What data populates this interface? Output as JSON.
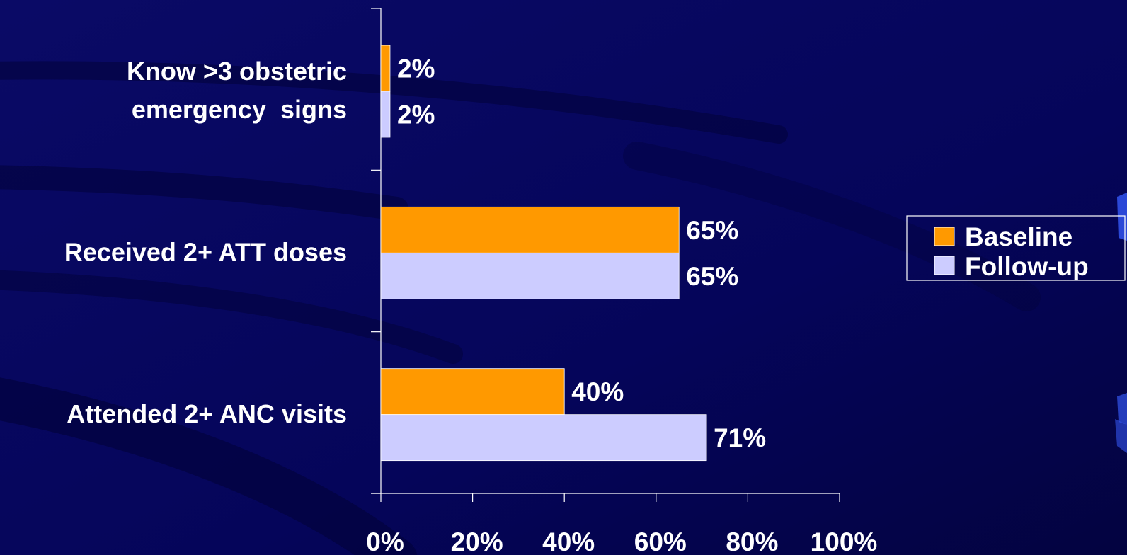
{
  "chart_data": {
    "type": "bar",
    "orientation": "horizontal",
    "categories": [
      [
        "Know >3 obstetric",
        "emergency  signs"
      ],
      [
        "Received 2+ ATT doses"
      ],
      [
        "Attended 2+ ANC visits"
      ]
    ],
    "series": [
      {
        "name": "Baseline",
        "values": [
          2,
          65,
          40
        ],
        "color": "#ff9900"
      },
      {
        "name": "Follow-up",
        "values": [
          2,
          65,
          71
        ],
        "color": "#ccccff"
      }
    ],
    "value_labels": [
      [
        "2%",
        "65%",
        "40%"
      ],
      [
        "2%",
        "65%",
        "71%"
      ]
    ],
    "xlim": [
      0,
      100
    ],
    "x_ticks": [
      {
        "value": 0,
        "label": "0%"
      },
      {
        "value": 20,
        "label": "20%"
      },
      {
        "value": 40,
        "label": "40%"
      },
      {
        "value": 60,
        "label": "60%"
      },
      {
        "value": 80,
        "label": "80%"
      },
      {
        "value": 100,
        "label": "100%"
      }
    ],
    "grid": false,
    "legend": "right"
  },
  "colors": {
    "background": "#06065a",
    "background_dark": "#020238",
    "accent_right": "#3355ee"
  }
}
